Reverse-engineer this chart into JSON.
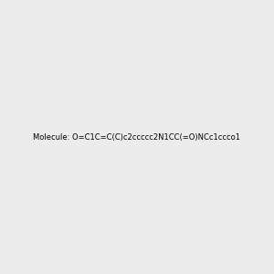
{
  "background_color": "#ececec",
  "title": "",
  "smiles": "O=C1C=C(C)c2ccccc2N1CC(=O)NCc1ccco1",
  "figsize": [
    3.0,
    3.0
  ],
  "dpi": 100
}
